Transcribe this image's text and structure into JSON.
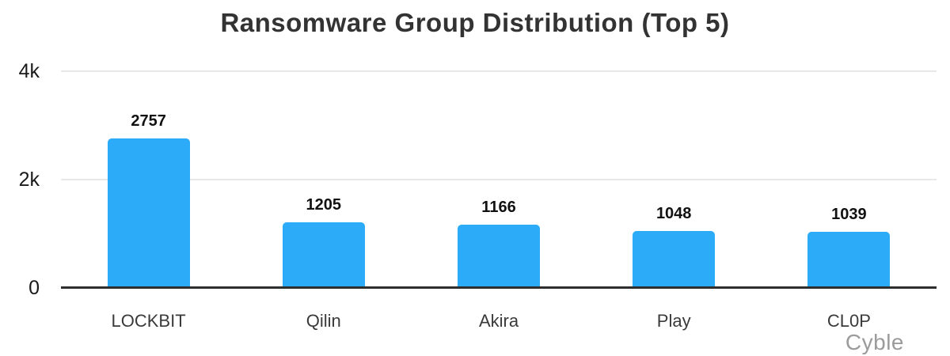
{
  "title": "Ransomware Group Distribution (Top 5)",
  "watermark": "Cyble",
  "colors": {
    "bar": "#2BABF8",
    "title": "#333333",
    "grid": "#e8e8e8",
    "axis": "#2e2e2e",
    "value_label": "#111111",
    "category_label": "#3a3a3a",
    "tick_label": "#1a1a1a",
    "watermark": "#9b9b9b",
    "background": "#ffffff"
  },
  "chart_data": {
    "type": "bar",
    "title": "Ransomware Group Distribution (Top 5)",
    "categories": [
      "LOCKBIT",
      "Qilin",
      "Akira",
      "Play",
      "CL0P"
    ],
    "values": [
      2757,
      1205,
      1166,
      1048,
      1039
    ],
    "xlabel": "",
    "ylabel": "",
    "ylim": [
      0,
      4000
    ],
    "yticks": [
      {
        "value": 0,
        "label": "0"
      },
      {
        "value": 2000,
        "label": "2k"
      },
      {
        "value": 4000,
        "label": "4k"
      }
    ],
    "grid": true,
    "legend_position": "none",
    "value_labels_shown": true
  }
}
